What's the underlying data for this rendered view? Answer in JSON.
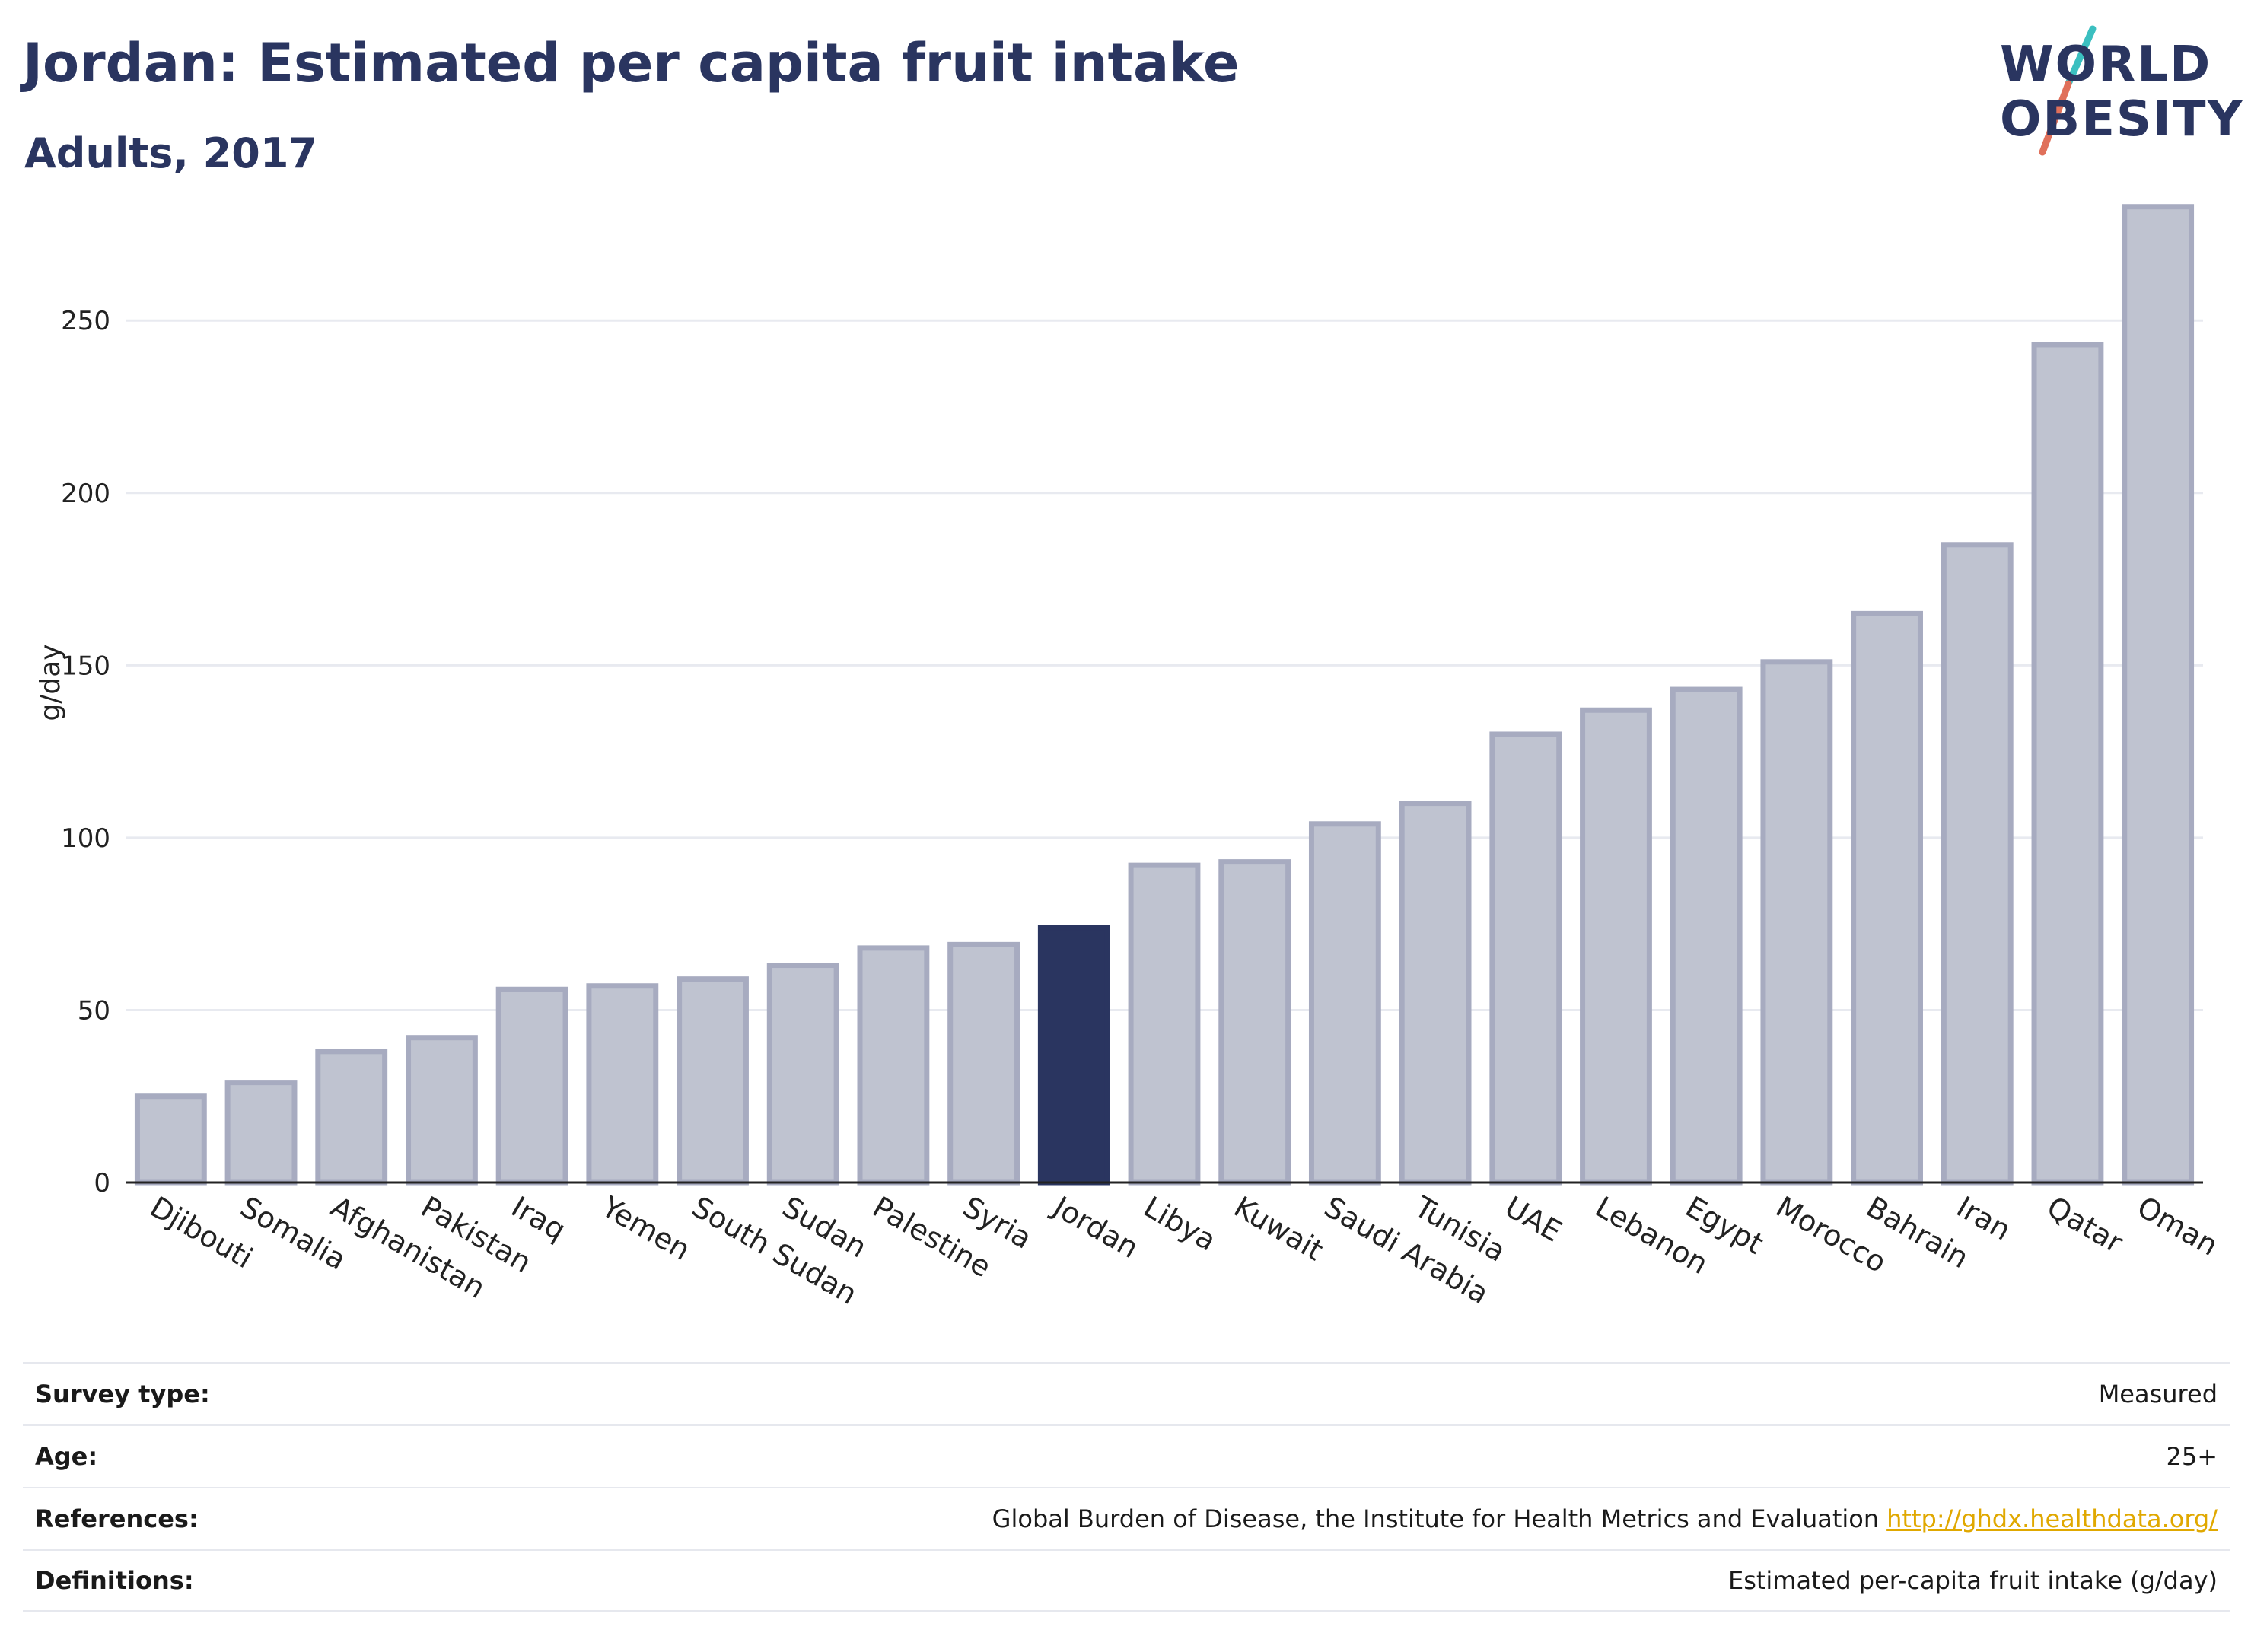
{
  "header": {
    "title": "Jordan: Estimated per capita fruit intake",
    "subtitle": "Adults, 2017"
  },
  "logo": {
    "line1": "WORLD",
    "line2": "OBESITY",
    "accent_colors": [
      "#3bbfc0",
      "#e0705a"
    ]
  },
  "chart_data": {
    "type": "bar",
    "ylabel": "g/day",
    "xlabel": "",
    "ylim": [
      0,
      290
    ],
    "yticks": [
      0,
      50,
      100,
      150,
      200,
      250
    ],
    "grid": true,
    "highlight": "Jordan",
    "colors": {
      "default": "#bfc3d0",
      "default_border": "#a7abc0",
      "highlight": "#2a3560"
    },
    "categories": [
      "Djibouti",
      "Somalia",
      "Afghanistan",
      "Pakistan",
      "Iraq",
      "Yemen",
      "South Sudan",
      "Sudan",
      "Palestine",
      "Syria",
      "Jordan",
      "Libya",
      "Kuwait",
      "Saudi Arabia",
      "Tunisia",
      "UAE",
      "Lebanon",
      "Egypt",
      "Morocco",
      "Bahrain",
      "Iran",
      "Qatar",
      "Oman"
    ],
    "values": [
      25,
      29,
      38,
      42,
      56,
      57,
      59,
      63,
      68,
      69,
      74,
      92,
      93,
      104,
      110,
      130,
      137,
      143,
      151,
      165,
      185,
      243,
      283
    ]
  },
  "meta": [
    {
      "label": "Survey type:",
      "value": "Measured"
    },
    {
      "label": "Age:",
      "value": "25+"
    },
    {
      "label": "References:",
      "value": "Global Burden of Disease, the Institute for Health Metrics and Evaluation",
      "link": "http://ghdx.healthdata.org/"
    },
    {
      "label": "Definitions:",
      "value": "Estimated per-capita fruit intake (g/day)"
    }
  ]
}
